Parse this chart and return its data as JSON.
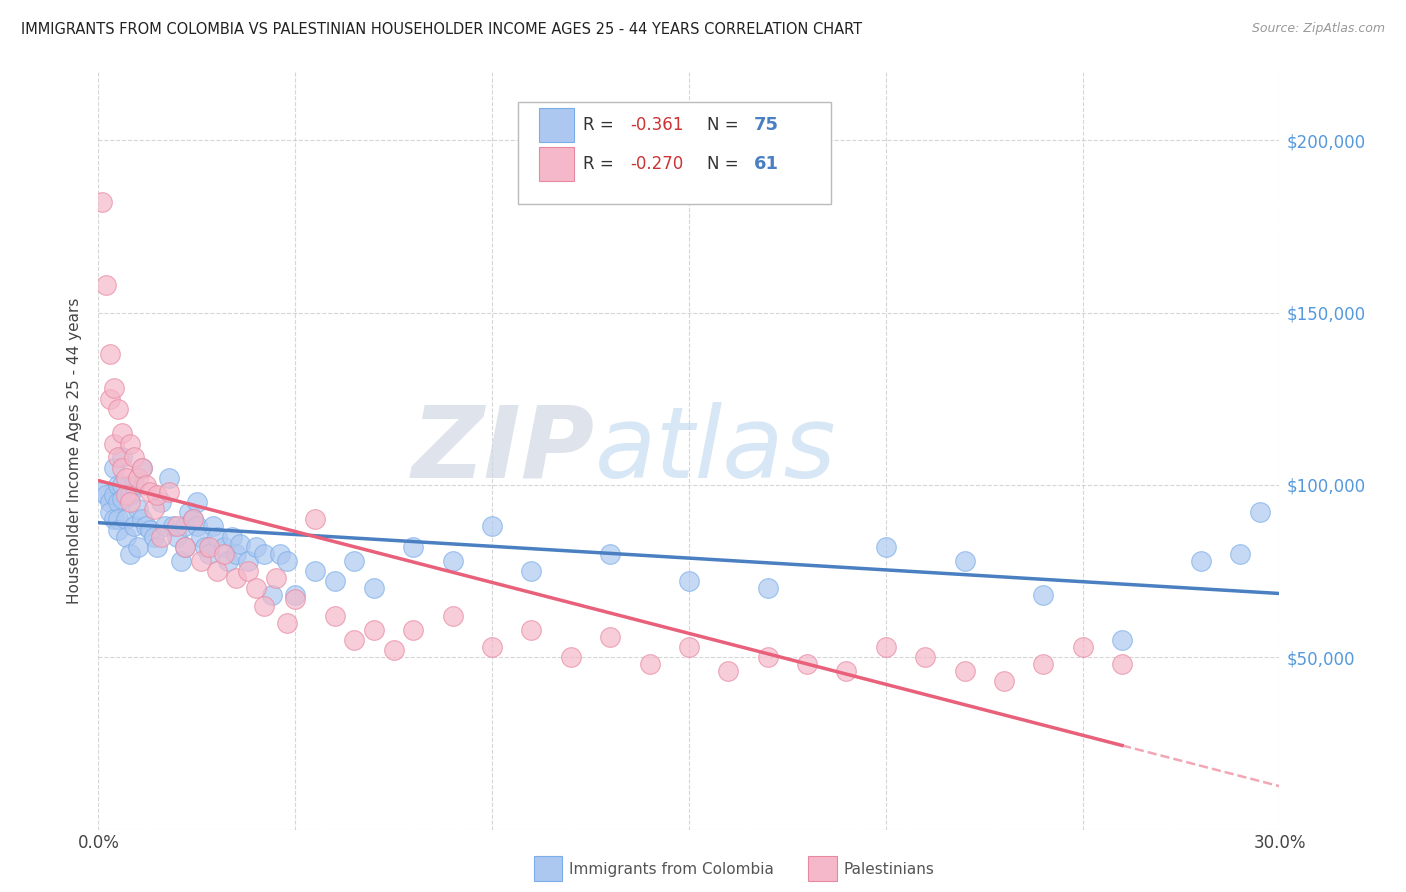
{
  "title": "IMMIGRANTS FROM COLOMBIA VS PALESTINIAN HOUSEHOLDER INCOME AGES 25 - 44 YEARS CORRELATION CHART",
  "source": "Source: ZipAtlas.com",
  "ylabel": "Householder Income Ages 25 - 44 years",
  "yticks": [
    0,
    50000,
    100000,
    150000,
    200000
  ],
  "ytick_labels": [
    "",
    "$50,000",
    "$100,000",
    "$150,000",
    "$200,000"
  ],
  "xmin": 0.0,
  "xmax": 0.3,
  "ymin": 0,
  "ymax": 220000,
  "colombia_color": "#adc8f0",
  "colombia_edge": "#7baee8",
  "palestine_color": "#f5b8ca",
  "palestine_edge": "#e888a0",
  "colombia_line_color": "#4a7fc1",
  "palestine_line_color": "#e8607a",
  "watermark_zip": "ZIP",
  "watermark_atlas": "atlas",
  "legend_colombia_R": "R =  -0.361",
  "legend_colombia_N": "N = 75",
  "legend_palestine_R": "R =  -0.270",
  "legend_palestine_N": "N =  61",
  "colombia_x": [
    0.001,
    0.002,
    0.003,
    0.003,
    0.004,
    0.004,
    0.004,
    0.005,
    0.005,
    0.005,
    0.005,
    0.006,
    0.006,
    0.006,
    0.007,
    0.007,
    0.008,
    0.008,
    0.009,
    0.009,
    0.01,
    0.01,
    0.011,
    0.011,
    0.012,
    0.013,
    0.014,
    0.015,
    0.016,
    0.017,
    0.018,
    0.019,
    0.02,
    0.021,
    0.022,
    0.022,
    0.023,
    0.024,
    0.025,
    0.025,
    0.026,
    0.027,
    0.028,
    0.029,
    0.03,
    0.032,
    0.033,
    0.034,
    0.035,
    0.036,
    0.038,
    0.04,
    0.042,
    0.044,
    0.046,
    0.048,
    0.05,
    0.055,
    0.06,
    0.065,
    0.07,
    0.08,
    0.09,
    0.1,
    0.11,
    0.13,
    0.15,
    0.17,
    0.2,
    0.22,
    0.24,
    0.26,
    0.28,
    0.29,
    0.295
  ],
  "colombia_y": [
    98000,
    97000,
    95000,
    92000,
    105000,
    97000,
    90000,
    100000,
    95000,
    90000,
    87000,
    108000,
    100000,
    96000,
    90000,
    85000,
    97000,
    80000,
    100000,
    88000,
    93000,
    82000,
    105000,
    90000,
    88000,
    87000,
    85000,
    82000,
    95000,
    88000,
    102000,
    88000,
    85000,
    78000,
    88000,
    82000,
    92000,
    90000,
    95000,
    88000,
    85000,
    82000,
    80000,
    88000,
    85000,
    82000,
    78000,
    85000,
    80000,
    83000,
    78000,
    82000,
    80000,
    68000,
    80000,
    78000,
    68000,
    75000,
    72000,
    78000,
    70000,
    82000,
    78000,
    88000,
    75000,
    80000,
    72000,
    70000,
    82000,
    78000,
    68000,
    55000,
    78000,
    80000,
    92000
  ],
  "palestine_x": [
    0.001,
    0.002,
    0.003,
    0.003,
    0.004,
    0.004,
    0.005,
    0.005,
    0.006,
    0.006,
    0.007,
    0.007,
    0.008,
    0.008,
    0.009,
    0.01,
    0.011,
    0.012,
    0.013,
    0.014,
    0.015,
    0.016,
    0.018,
    0.02,
    0.022,
    0.024,
    0.026,
    0.028,
    0.03,
    0.032,
    0.035,
    0.038,
    0.04,
    0.042,
    0.045,
    0.048,
    0.05,
    0.055,
    0.06,
    0.065,
    0.07,
    0.075,
    0.08,
    0.09,
    0.1,
    0.11,
    0.12,
    0.13,
    0.14,
    0.15,
    0.16,
    0.17,
    0.18,
    0.19,
    0.2,
    0.21,
    0.22,
    0.23,
    0.24,
    0.25,
    0.26
  ],
  "palestine_y": [
    182000,
    158000,
    138000,
    125000,
    128000,
    112000,
    122000,
    108000,
    115000,
    105000,
    102000,
    97000,
    112000,
    95000,
    108000,
    102000,
    105000,
    100000,
    98000,
    93000,
    97000,
    85000,
    98000,
    88000,
    82000,
    90000,
    78000,
    82000,
    75000,
    80000,
    73000,
    75000,
    70000,
    65000,
    73000,
    60000,
    67000,
    90000,
    62000,
    55000,
    58000,
    52000,
    58000,
    62000,
    53000,
    58000,
    50000,
    56000,
    48000,
    53000,
    46000,
    50000,
    48000,
    46000,
    53000,
    50000,
    46000,
    43000,
    48000,
    53000,
    48000
  ]
}
